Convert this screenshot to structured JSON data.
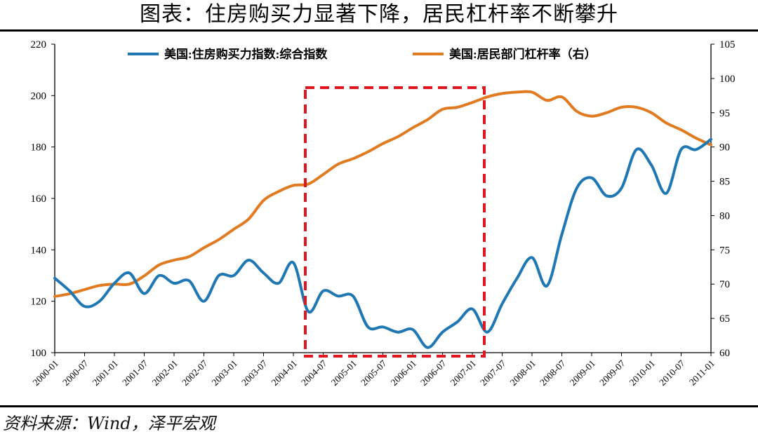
{
  "title": "图表：住房购买力显著下降，居民杠杆率不断攀升",
  "source": "资料来源：Wind，泽平宏观",
  "chart_data": {
    "type": "line",
    "categories": [
      "2000-01",
      "2000-07",
      "2001-01",
      "2001-07",
      "2002-01",
      "2002-07",
      "2003-01",
      "2003-07",
      "2004-01",
      "2004-07",
      "2005-01",
      "2005-07",
      "2006-01",
      "2006-07",
      "2007-01",
      "2007-07",
      "2008-01",
      "2008-07",
      "2009-01",
      "2009-07",
      "2010-01",
      "2010-07",
      "2011-01"
    ],
    "y_left": {
      "min": 100,
      "max": 220,
      "ticks": [
        100,
        120,
        140,
        160,
        180,
        200,
        220
      ]
    },
    "y_right": {
      "min": 60,
      "max": 105,
      "ticks": [
        60,
        65,
        70,
        75,
        80,
        85,
        90,
        95,
        100,
        105
      ]
    },
    "series": [
      {
        "name": "美国:住房购买力指数:综合指数",
        "axis": "left",
        "color": "#1f77b4",
        "x": [
          2000.0,
          2000.25,
          2000.5,
          2000.75,
          2001.0,
          2001.25,
          2001.5,
          2001.75,
          2002.0,
          2002.25,
          2002.5,
          2002.75,
          2003.0,
          2003.25,
          2003.5,
          2003.75,
          2004.0,
          2004.25,
          2004.5,
          2004.75,
          2005.0,
          2005.25,
          2005.5,
          2005.75,
          2006.0,
          2006.25,
          2006.5,
          2006.75,
          2007.0,
          2007.25,
          2007.5,
          2007.75,
          2008.0,
          2008.25,
          2008.5,
          2008.75,
          2009.0,
          2009.25,
          2009.5,
          2009.75,
          2010.0,
          2010.25,
          2010.5,
          2010.75,
          2011.0
        ],
        "values": [
          129,
          124,
          118,
          120,
          127,
          131,
          123,
          130,
          127,
          128,
          120,
          130,
          130,
          136,
          131,
          127,
          135,
          116,
          124,
          122,
          122,
          110,
          110,
          108,
          109,
          102,
          108,
          112,
          117,
          108,
          119,
          129,
          137,
          126,
          146,
          164,
          168,
          161,
          164,
          179,
          173,
          162,
          179,
          179,
          183
        ]
      },
      {
        "name": "美国:居民部门杠杆率（右）",
        "axis": "right",
        "color": "#e07b22",
        "x": [
          2000.0,
          2000.25,
          2000.5,
          2000.75,
          2001.0,
          2001.25,
          2001.5,
          2001.75,
          2002.0,
          2002.25,
          2002.5,
          2002.75,
          2003.0,
          2003.25,
          2003.5,
          2003.75,
          2004.0,
          2004.25,
          2004.5,
          2004.75,
          2005.0,
          2005.25,
          2005.5,
          2005.75,
          2006.0,
          2006.25,
          2006.5,
          2006.75,
          2007.0,
          2007.25,
          2007.5,
          2007.75,
          2008.0,
          2008.25,
          2008.5,
          2008.75,
          2009.0,
          2009.25,
          2009.5,
          2009.75,
          2010.0,
          2010.25,
          2010.5,
          2010.75,
          2011.0
        ],
        "values": [
          68.2,
          68.6,
          69.2,
          69.8,
          70.0,
          70.0,
          71.2,
          72.8,
          73.5,
          74.0,
          75.3,
          76.5,
          78.0,
          79.5,
          82.2,
          83.5,
          84.4,
          84.6,
          86.0,
          87.5,
          88.3,
          89.3,
          90.5,
          91.5,
          92.8,
          94.0,
          95.5,
          95.8,
          96.5,
          97.3,
          97.8,
          98.0,
          98.0,
          96.8,
          97.3,
          95.2,
          94.5,
          95.0,
          95.8,
          95.8,
          95.0,
          93.5,
          92.5,
          91.3,
          90.3
        ]
      }
    ],
    "annotation": {
      "type": "dashed-rectangle",
      "color": "#e0171f",
      "x_start": 2004.2,
      "x_end": 2007.2
    }
  }
}
